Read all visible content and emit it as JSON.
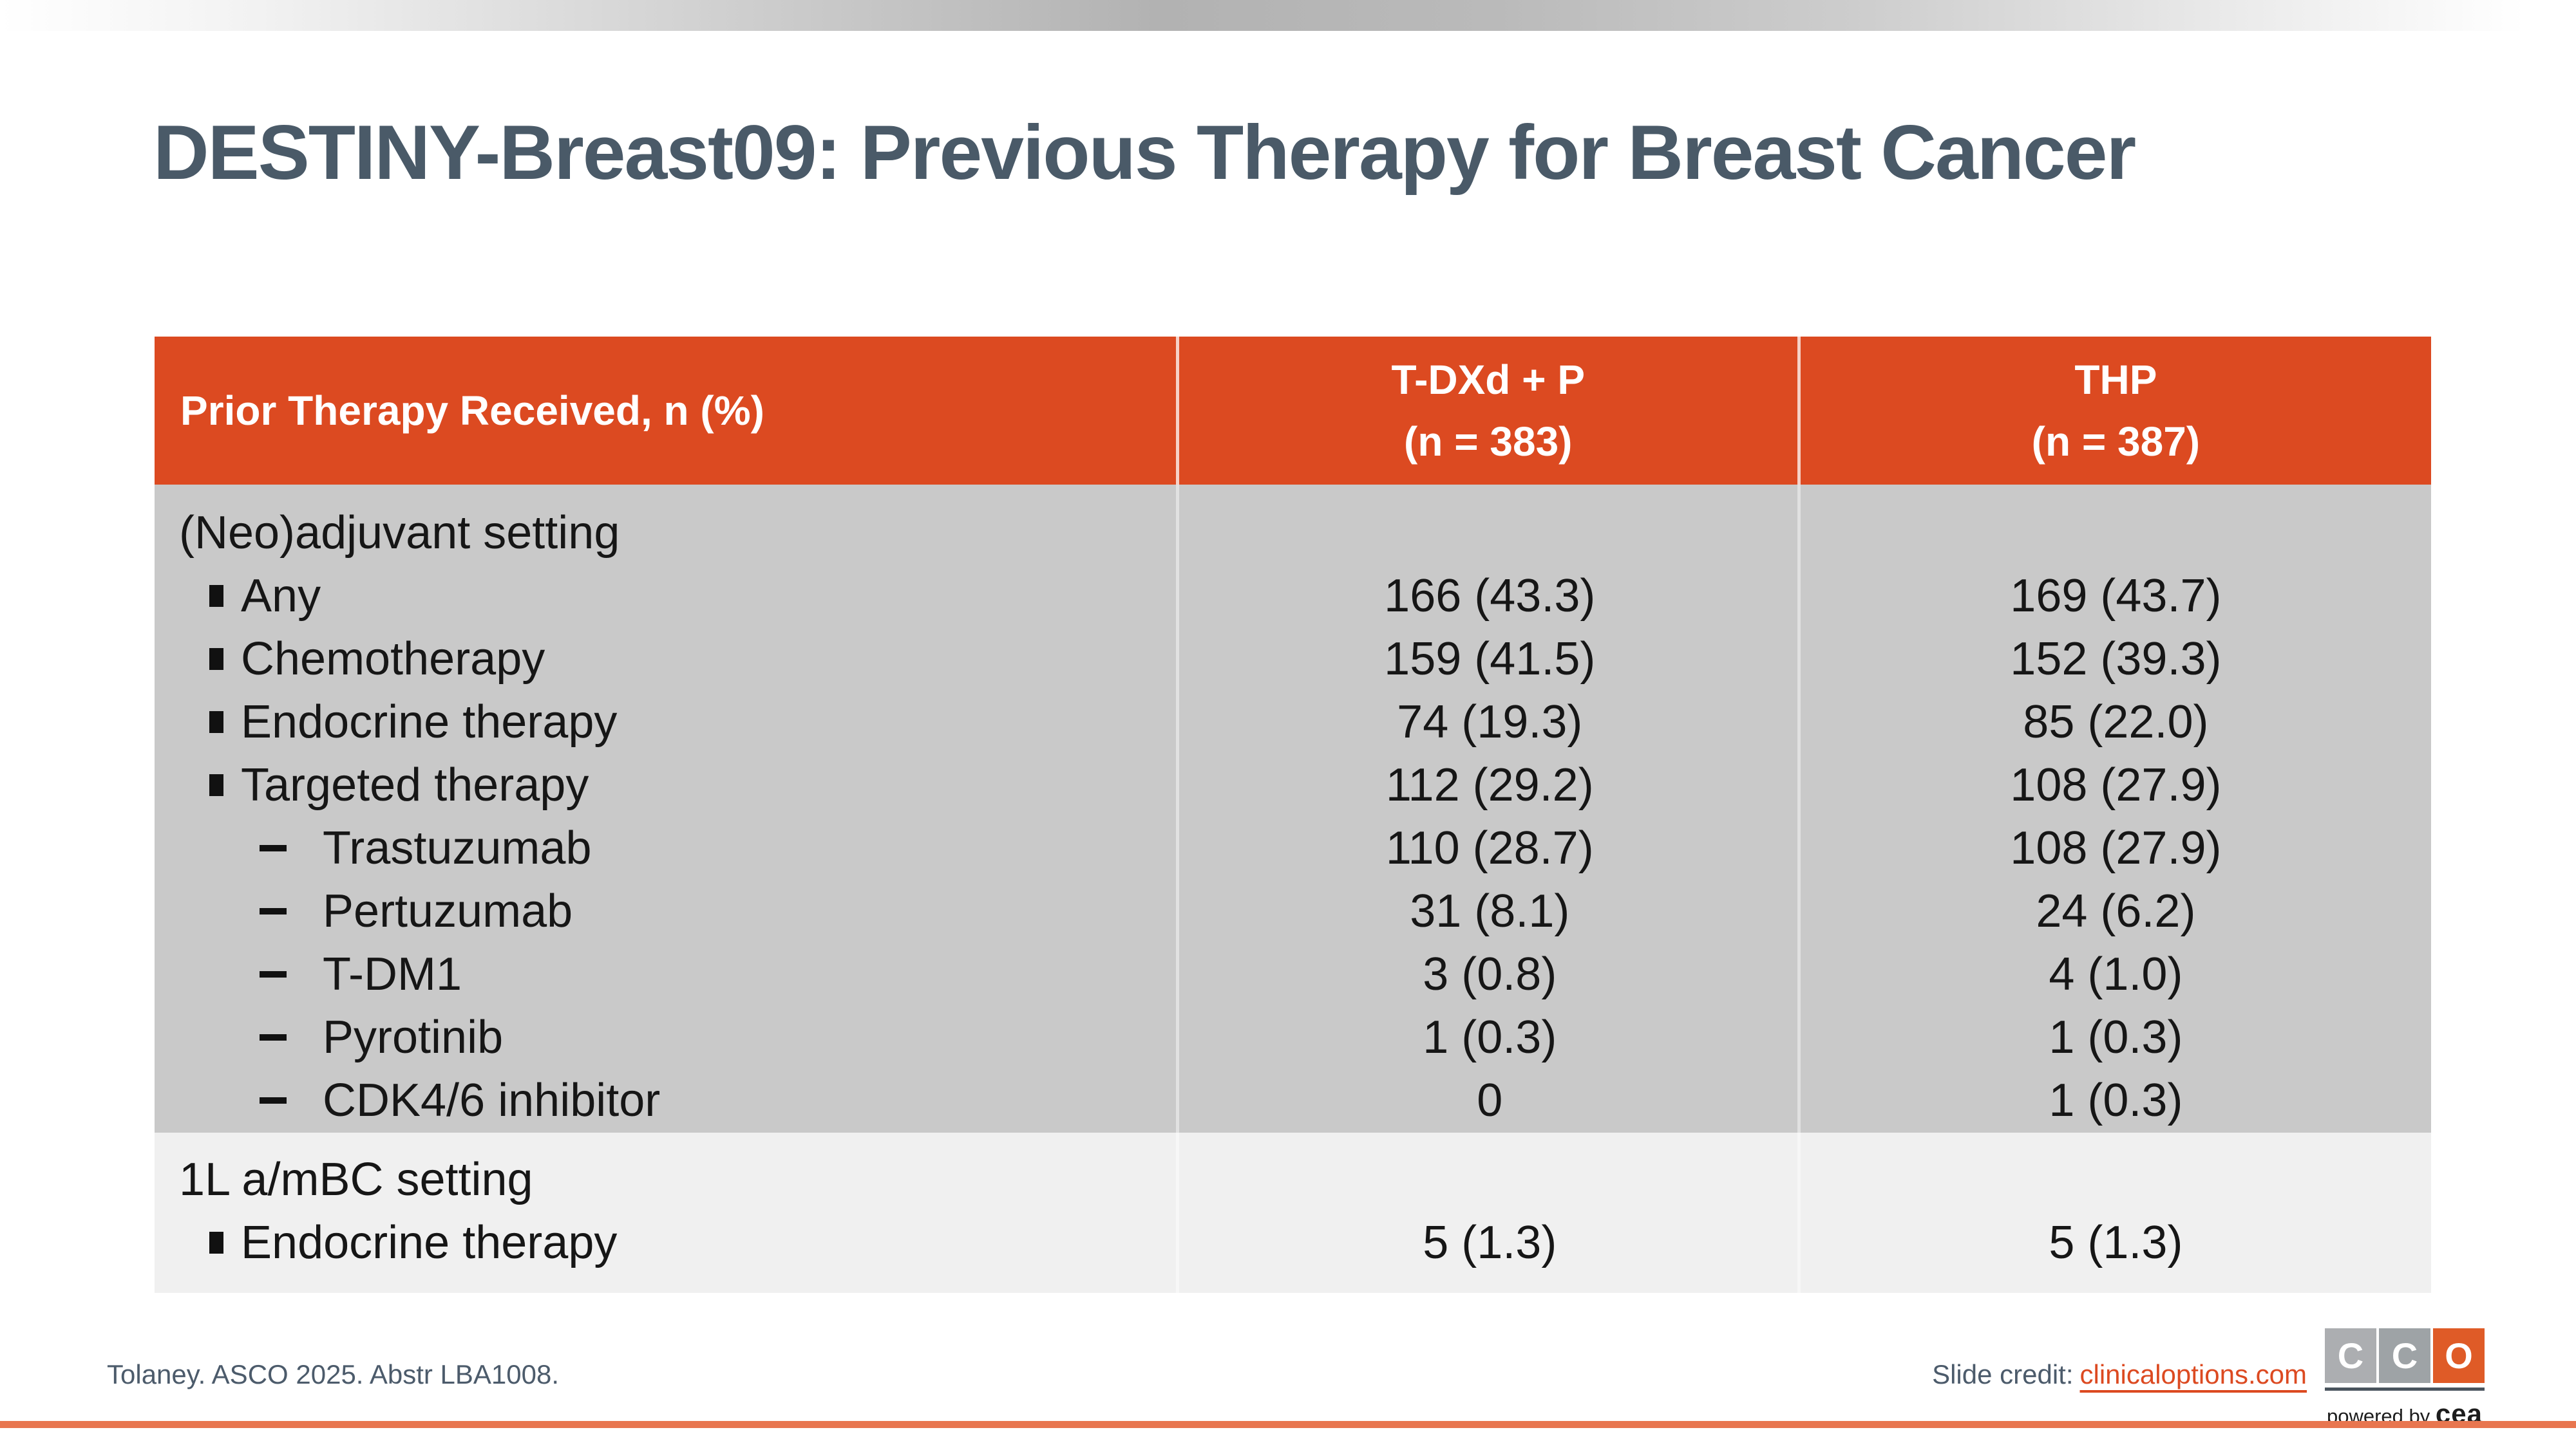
{
  "slide": {
    "title": "DESTINY-Breast09: Previous Therapy for Breast Cancer"
  },
  "table": {
    "header": {
      "col1": "Prior Therapy Received, n (%)",
      "col2_line1": "T-DXd + P",
      "col2_line2": "(n = 383)",
      "col3_line1": "THP",
      "col3_line2": "(n = 387)"
    },
    "sections": [
      {
        "name": "(Neo)adjuvant setting",
        "rows": [
          {
            "label": "Any",
            "level": 1,
            "tdxd_p": "166 (43.3)",
            "thp": "169 (43.7)"
          },
          {
            "label": "Chemotherapy",
            "level": 1,
            "tdxd_p": "159 (41.5)",
            "thp": "152 (39.3)"
          },
          {
            "label": "Endocrine therapy",
            "level": 1,
            "tdxd_p": "74 (19.3)",
            "thp": "85 (22.0)"
          },
          {
            "label": "Targeted therapy",
            "level": 1,
            "tdxd_p": "112 (29.2)",
            "thp": "108 (27.9)"
          },
          {
            "label": "Trastuzumab",
            "level": 2,
            "tdxd_p": "110 (28.7)",
            "thp": "108 (27.9)"
          },
          {
            "label": "Pertuzumab",
            "level": 2,
            "tdxd_p": "31 (8.1)",
            "thp": "24 (6.2)"
          },
          {
            "label": "T-DM1",
            "level": 2,
            "tdxd_p": "3 (0.8)",
            "thp": "4 (1.0)"
          },
          {
            "label": "Pyrotinib",
            "level": 2,
            "tdxd_p": "1 (0.3)",
            "thp": "1 (0.3)"
          },
          {
            "label": "CDK4/6 inhibitor",
            "level": 2,
            "tdxd_p": "0",
            "thp": "1 (0.3)"
          }
        ]
      },
      {
        "name": "1L a/mBC setting",
        "rows": [
          {
            "label": "Endocrine therapy",
            "level": 1,
            "tdxd_p": "5 (1.3)",
            "thp": "5 (1.3)"
          }
        ]
      }
    ]
  },
  "footer": {
    "citation": "Tolaney. ASCO 2025. Abstr LBA1008.",
    "credit_label": "Slide credit:",
    "credit_link": "clinicaloptions.com"
  },
  "logo": {
    "letters": [
      "C",
      "C",
      "O"
    ],
    "powered_by_prefix": "powered by",
    "powered_by_brand": "cea"
  },
  "colors": {
    "accent_orange": "#DC4A21",
    "table_body_gray": "#C9C9C9",
    "table_light_gray": "#F0F0F0",
    "title_slate": "#4A5A68",
    "bottom_line_salmon": "#E8764F",
    "link_orange": "#DC4A21",
    "logo_gray_1": "#ACAEB1",
    "logo_gray_2": "#9EA3A6",
    "logo_orange": "#DF5B27"
  }
}
